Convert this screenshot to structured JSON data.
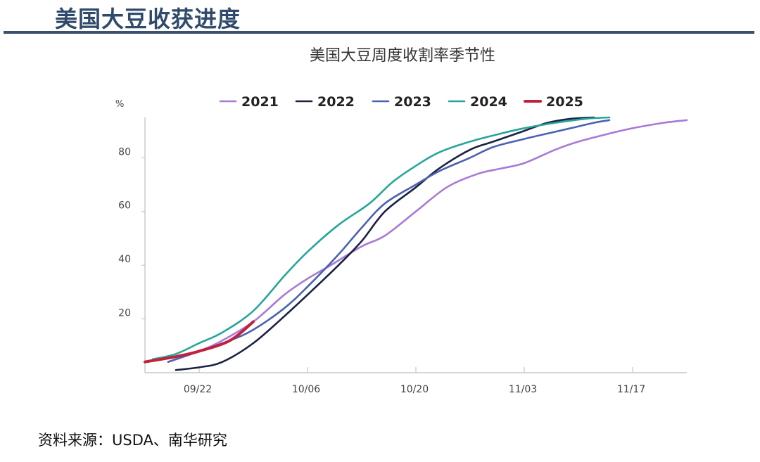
{
  "page": {
    "title": "美国大豆收获进度",
    "source": "资料来源：USDA、南华研究"
  },
  "chart_data": {
    "type": "line",
    "title": "美国大豆周度收割率季节性",
    "ylabel": "%",
    "xlabel": "",
    "x_domain": [
      0,
      70
    ],
    "ylim": [
      0,
      95
    ],
    "y_ticks": [
      20,
      40,
      60,
      80
    ],
    "x_ticks": [
      {
        "label": "09/22",
        "day": 7
      },
      {
        "label": "10/06",
        "day": 21
      },
      {
        "label": "10/20",
        "day": 35
      },
      {
        "label": "11/03",
        "day": 49
      },
      {
        "label": "11/17",
        "day": 63
      }
    ],
    "legend_position": "top",
    "colors": {
      "2021": "#a77ad6",
      "2022": "#1b2142",
      "2023": "#4a62b0",
      "2024": "#26a69a",
      "2025": "#c0213b"
    },
    "series": [
      {
        "name": "2021",
        "points": [
          [
            3,
            4
          ],
          [
            7,
            8
          ],
          [
            10,
            12
          ],
          [
            14,
            19
          ],
          [
            18,
            29
          ],
          [
            21,
            35
          ],
          [
            24,
            40
          ],
          [
            28,
            47
          ],
          [
            31,
            51
          ],
          [
            35,
            60
          ],
          [
            39,
            69
          ],
          [
            43,
            74
          ],
          [
            46,
            76
          ],
          [
            49,
            78
          ],
          [
            53,
            83
          ],
          [
            56,
            86
          ],
          [
            60,
            89
          ],
          [
            63,
            91
          ],
          [
            67,
            93
          ],
          [
            70,
            94
          ]
        ]
      },
      {
        "name": "2022",
        "points": [
          [
            4,
            1
          ],
          [
            7,
            2
          ],
          [
            10,
            4
          ],
          [
            14,
            11
          ],
          [
            18,
            21
          ],
          [
            21,
            29
          ],
          [
            25,
            40
          ],
          [
            28,
            49
          ],
          [
            31,
            60
          ],
          [
            35,
            69
          ],
          [
            38,
            76
          ],
          [
            42,
            83
          ],
          [
            45,
            86
          ],
          [
            49,
            90
          ],
          [
            52,
            93
          ],
          [
            55,
            94.5
          ],
          [
            58,
            95
          ]
        ]
      },
      {
        "name": "2023",
        "points": [
          [
            3,
            4
          ],
          [
            7,
            8
          ],
          [
            11,
            12
          ],
          [
            14,
            16
          ],
          [
            18,
            24
          ],
          [
            21,
            32
          ],
          [
            25,
            44
          ],
          [
            28,
            54
          ],
          [
            31,
            63
          ],
          [
            35,
            70
          ],
          [
            38,
            75
          ],
          [
            42,
            80
          ],
          [
            45,
            84
          ],
          [
            49,
            87
          ],
          [
            52,
            89
          ],
          [
            55,
            91
          ],
          [
            58,
            93
          ],
          [
            60,
            94
          ]
        ]
      },
      {
        "name": "2024",
        "points": [
          [
            1,
            5
          ],
          [
            4,
            7
          ],
          [
            7,
            11
          ],
          [
            10,
            15
          ],
          [
            14,
            23
          ],
          [
            18,
            36
          ],
          [
            21,
            45
          ],
          [
            25,
            55
          ],
          [
            29,
            63
          ],
          [
            32,
            71
          ],
          [
            35,
            77
          ],
          [
            38,
            82
          ],
          [
            42,
            86
          ],
          [
            46,
            89
          ],
          [
            49,
            91
          ],
          [
            53,
            93
          ],
          [
            57,
            94.5
          ],
          [
            60,
            95
          ]
        ]
      },
      {
        "name": "2025",
        "points": [
          [
            0,
            4
          ],
          [
            4,
            6
          ],
          [
            7,
            8
          ],
          [
            11,
            12
          ],
          [
            14,
            19
          ]
        ]
      }
    ]
  }
}
